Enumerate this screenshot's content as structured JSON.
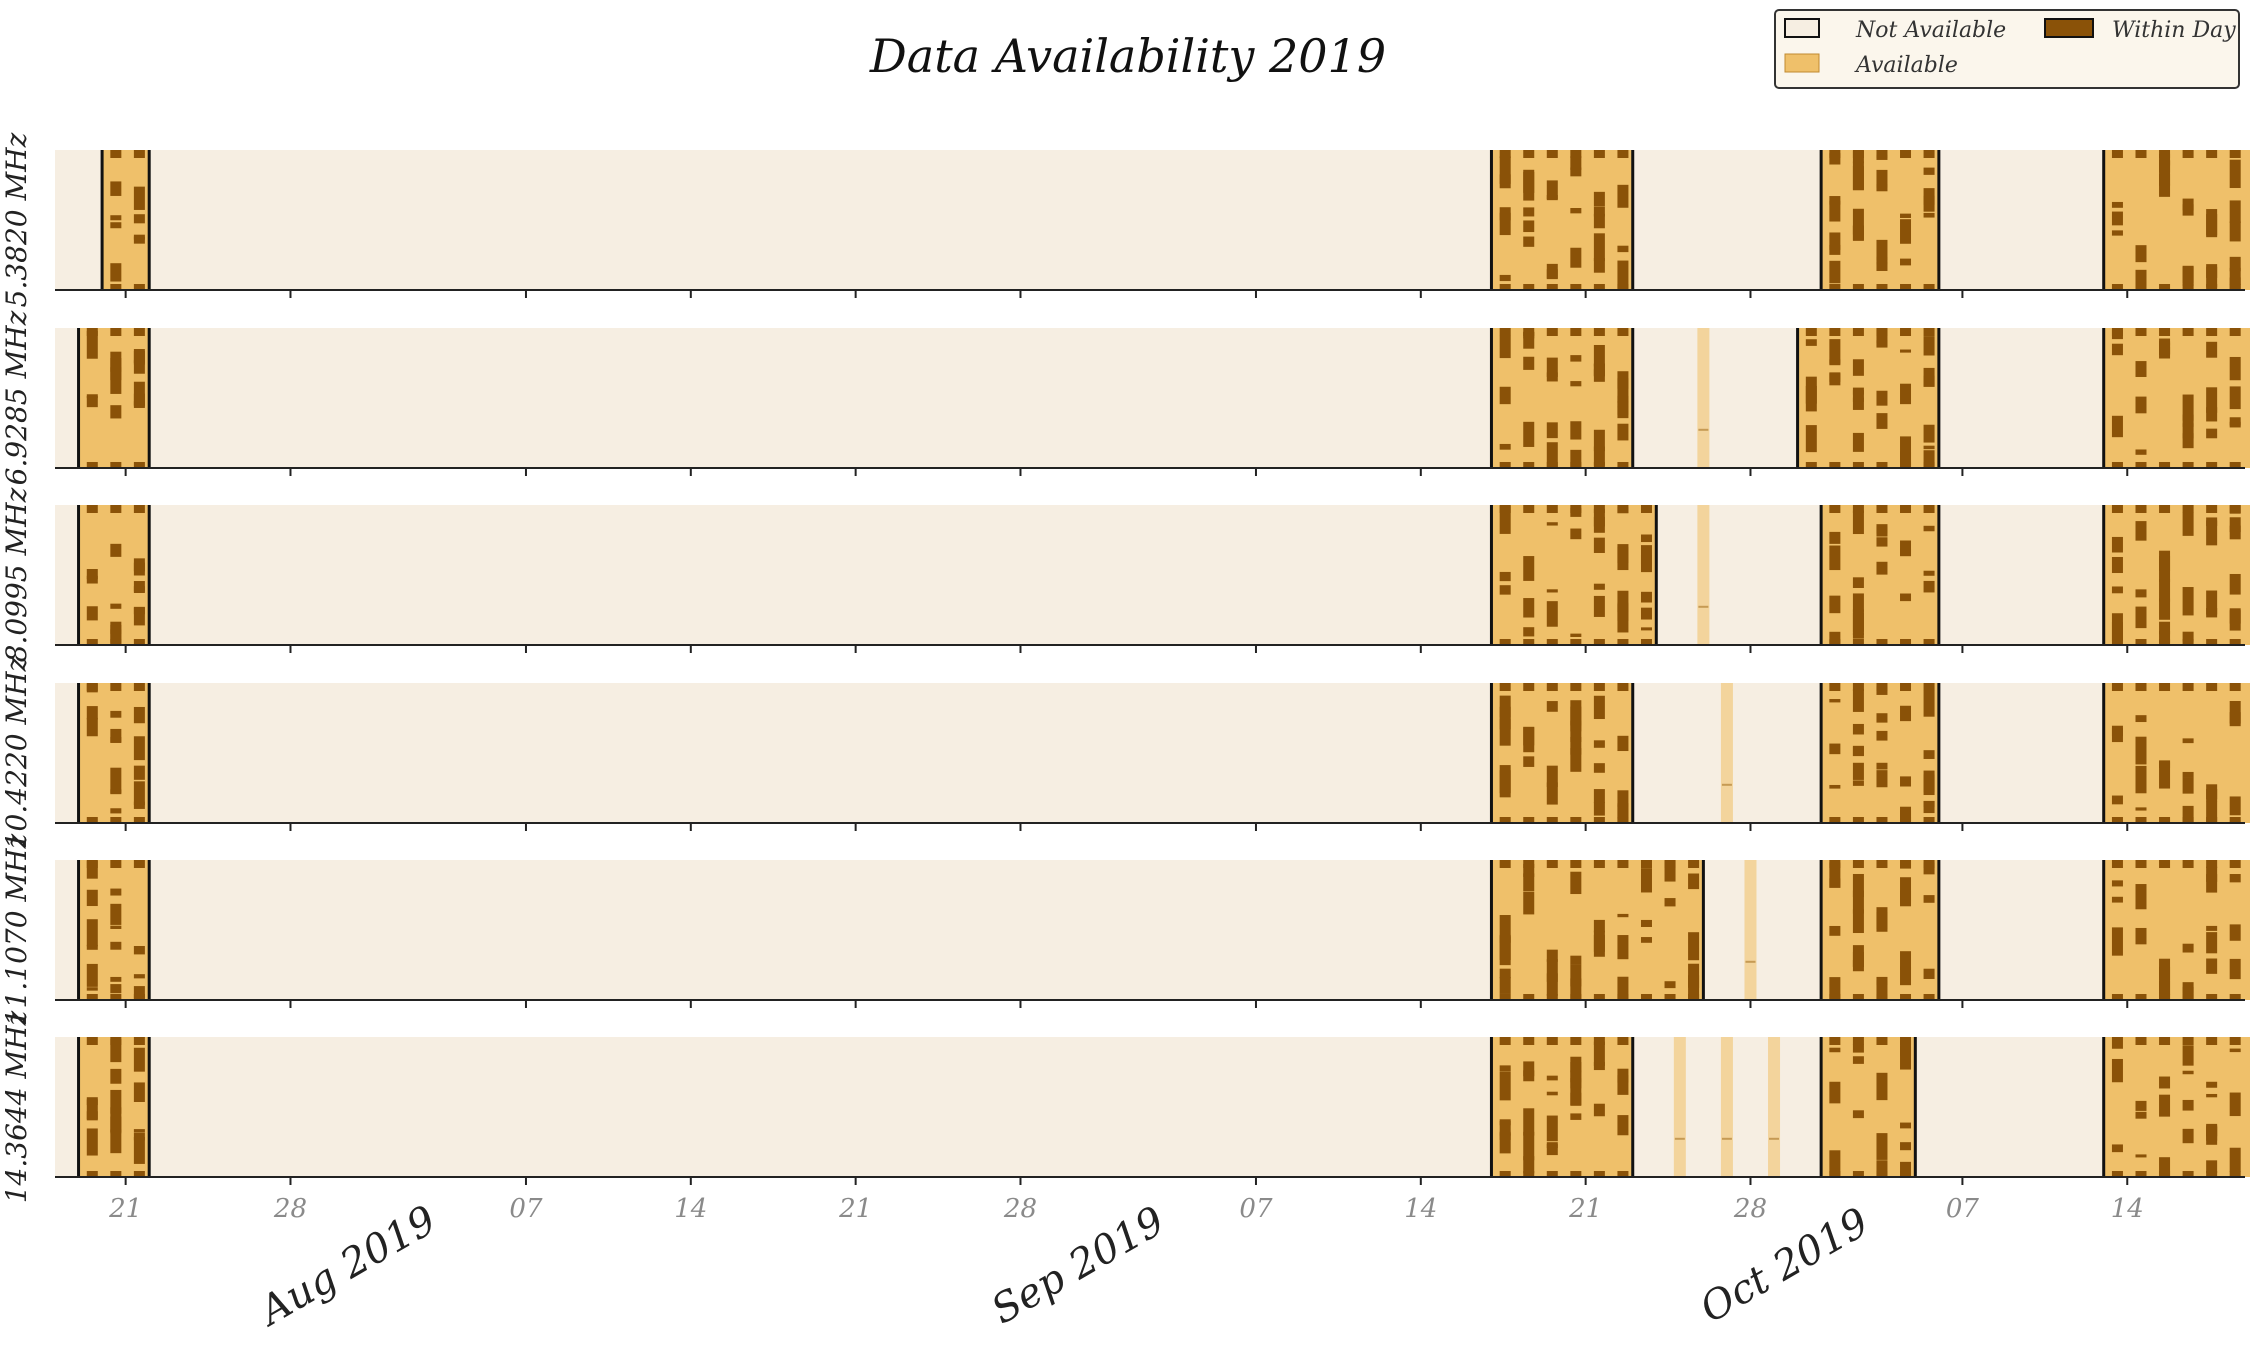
{
  "chart_data": {
    "type": "heatmap",
    "title": "Data Availability 2019",
    "x_range": [
      "2019-07-18",
      "2019-10-19"
    ],
    "legend": {
      "placement": "top-right",
      "entries": [
        {
          "label": "Not Available",
          "color": "#f6eee2"
        },
        {
          "label": "Available",
          "color": "#efc06a"
        },
        {
          "label": "Within Day",
          "color": "#8a5208"
        }
      ]
    },
    "x_tick_labels": [
      {
        "date": "2019-07-21",
        "label": "21"
      },
      {
        "date": "2019-07-28",
        "label": "28"
      },
      {
        "date": "2019-08-07",
        "label": "07"
      },
      {
        "date": "2019-08-14",
        "label": "14"
      },
      {
        "date": "2019-08-21",
        "label": "21"
      },
      {
        "date": "2019-08-28",
        "label": "28"
      },
      {
        "date": "2019-09-07",
        "label": "07"
      },
      {
        "date": "2019-09-14",
        "label": "14"
      },
      {
        "date": "2019-09-21",
        "label": "21"
      },
      {
        "date": "2019-09-28",
        "label": "28"
      },
      {
        "date": "2019-10-07",
        "label": "07"
      },
      {
        "date": "2019-10-14",
        "label": "14"
      }
    ],
    "month_labels": [
      {
        "date": "2019-08-01",
        "label": "Aug 2019"
      },
      {
        "date": "2019-09-01",
        "label": "Sep 2019"
      },
      {
        "date": "2019-10-01",
        "label": "Oct 2019"
      }
    ],
    "series": [
      {
        "name": "5.3820 MHz",
        "available": [
          [
            "2019-07-20",
            "2019-07-22"
          ],
          [
            "2019-09-17",
            "2019-09-23"
          ],
          [
            "2019-10-01",
            "2019-10-06"
          ],
          [
            "2019-10-13",
            "2019-10-20"
          ]
        ],
        "partial_days": []
      },
      {
        "name": "6.9285 MHz",
        "available": [
          [
            "2019-07-19",
            "2019-07-22"
          ],
          [
            "2019-09-17",
            "2019-09-23"
          ],
          [
            "2019-09-30",
            "2019-10-06"
          ],
          [
            "2019-10-13",
            "2019-10-20"
          ]
        ],
        "partial_days": [
          "2019-09-26"
        ]
      },
      {
        "name": "8.0995 MHz",
        "available": [
          [
            "2019-07-19",
            "2019-07-22"
          ],
          [
            "2019-09-17",
            "2019-09-24"
          ],
          [
            "2019-10-01",
            "2019-10-06"
          ],
          [
            "2019-10-13",
            "2019-10-20"
          ]
        ],
        "partial_days": [
          "2019-09-26"
        ]
      },
      {
        "name": "10.4220 MHz",
        "available": [
          [
            "2019-07-19",
            "2019-07-22"
          ],
          [
            "2019-09-17",
            "2019-09-23"
          ],
          [
            "2019-10-01",
            "2019-10-06"
          ],
          [
            "2019-10-13",
            "2019-10-20"
          ]
        ],
        "partial_days": [
          "2019-09-27"
        ]
      },
      {
        "name": "11.1070 MHz",
        "available": [
          [
            "2019-07-19",
            "2019-07-22"
          ],
          [
            "2019-09-17",
            "2019-09-26"
          ],
          [
            "2019-10-01",
            "2019-10-06"
          ],
          [
            "2019-10-13",
            "2019-10-20"
          ]
        ],
        "partial_days": [
          "2019-09-28"
        ]
      },
      {
        "name": "14.3644 MHz",
        "available": [
          [
            "2019-07-19",
            "2019-07-22"
          ],
          [
            "2019-09-17",
            "2019-09-23"
          ],
          [
            "2019-10-01",
            "2019-10-05"
          ],
          [
            "2019-10-13",
            "2019-10-20"
          ]
        ],
        "partial_days": [
          "2019-09-25",
          "2019-09-27",
          "2019-09-29"
        ]
      }
    ]
  }
}
